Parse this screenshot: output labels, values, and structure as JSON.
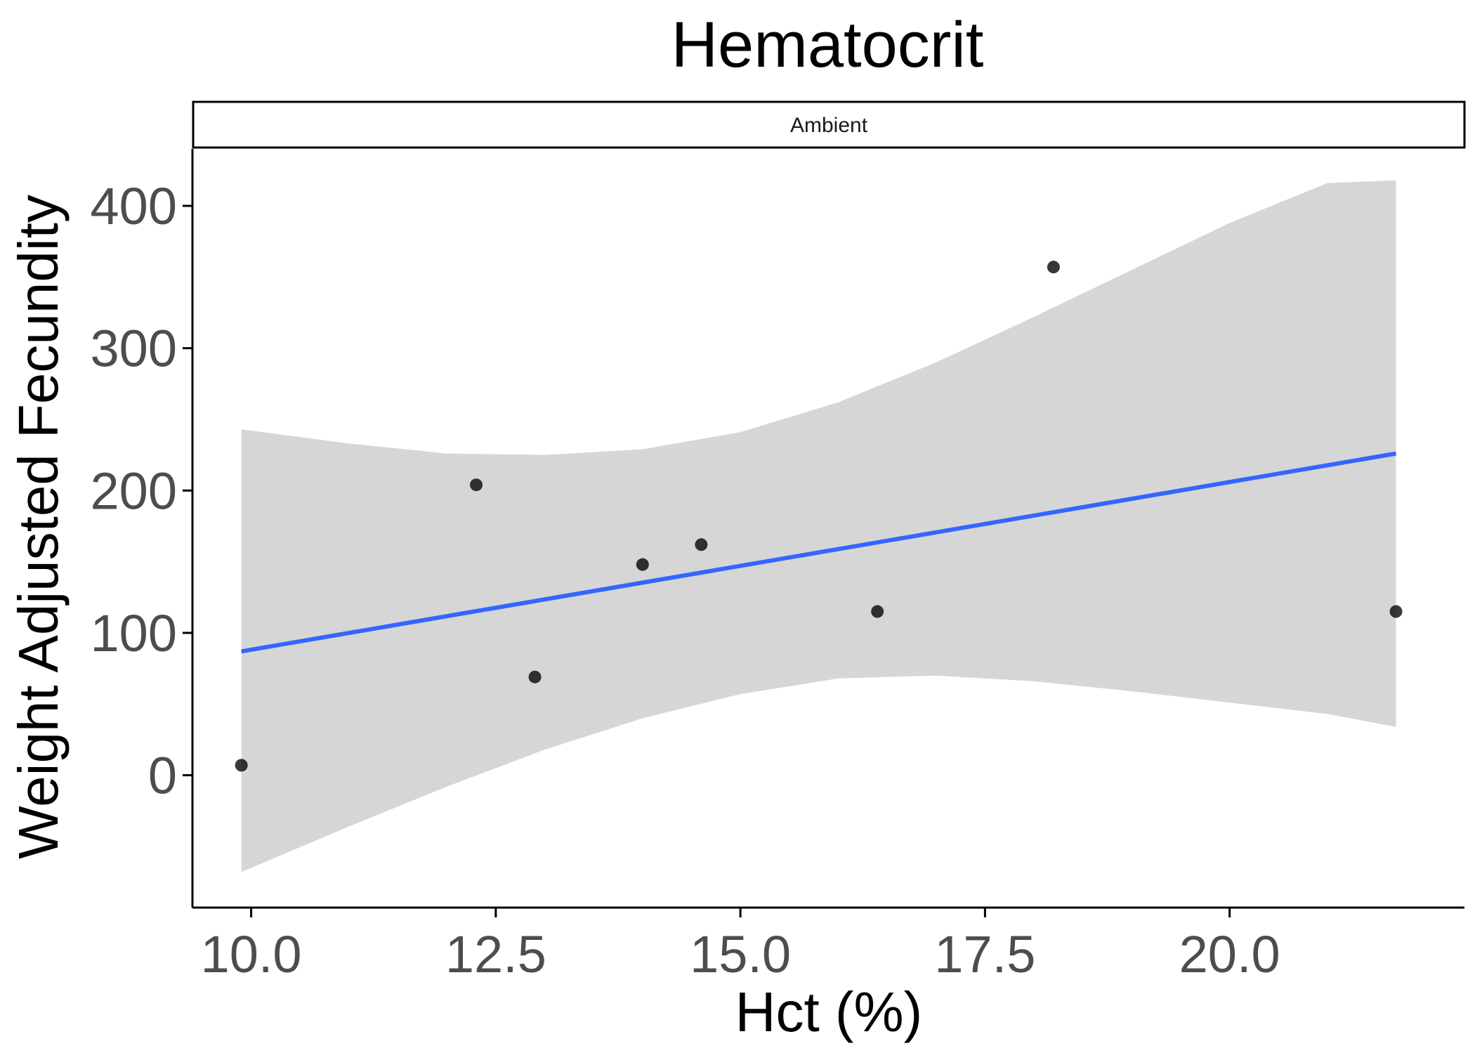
{
  "chart_data": {
    "type": "scatter",
    "title": "Hematocrit",
    "facet_label": "Ambient",
    "xlabel": "Hct (%)",
    "ylabel": "Weight Adjusted Fecundity",
    "xlim": [
      9.4,
      22.4
    ],
    "ylim": [
      -93,
      440
    ],
    "x_ticks": [
      10.0,
      12.5,
      15.0,
      17.5,
      20.0
    ],
    "x_tick_labels": [
      "10.0",
      "12.5",
      "15.0",
      "17.5",
      "20.0"
    ],
    "y_ticks": [
      0,
      100,
      200,
      300,
      400
    ],
    "y_tick_labels": [
      "0",
      "100",
      "200",
      "300",
      "400"
    ],
    "grid": false,
    "points": [
      {
        "x": 9.9,
        "y": 7
      },
      {
        "x": 12.3,
        "y": 204
      },
      {
        "x": 12.9,
        "y": 69
      },
      {
        "x": 14.0,
        "y": 148
      },
      {
        "x": 14.6,
        "y": 162
      },
      {
        "x": 16.4,
        "y": 115
      },
      {
        "x": 18.2,
        "y": 357
      },
      {
        "x": 21.7,
        "y": 115
      }
    ],
    "fit_line": {
      "method": "linear",
      "x": [
        9.9,
        21.7
      ],
      "y": [
        87,
        226
      ]
    },
    "confidence_band": {
      "x": [
        9.9,
        11.0,
        12.0,
        13.0,
        14.0,
        15.0,
        16.0,
        17.0,
        18.0,
        19.0,
        20.0,
        21.0,
        21.7
      ],
      "lower": [
        -68,
        -36,
        -8,
        18,
        40,
        57,
        68,
        70,
        66,
        59,
        51,
        43,
        34
      ],
      "upper": [
        243,
        233,
        226,
        225,
        229,
        241,
        262,
        290,
        322,
        355,
        388,
        416,
        418
      ]
    },
    "colors": {
      "points": "#000000",
      "fit_line": "#3366ff",
      "band": "#d6d6d6",
      "axis": "#000000",
      "tick_label": "#4d4d4d"
    }
  }
}
